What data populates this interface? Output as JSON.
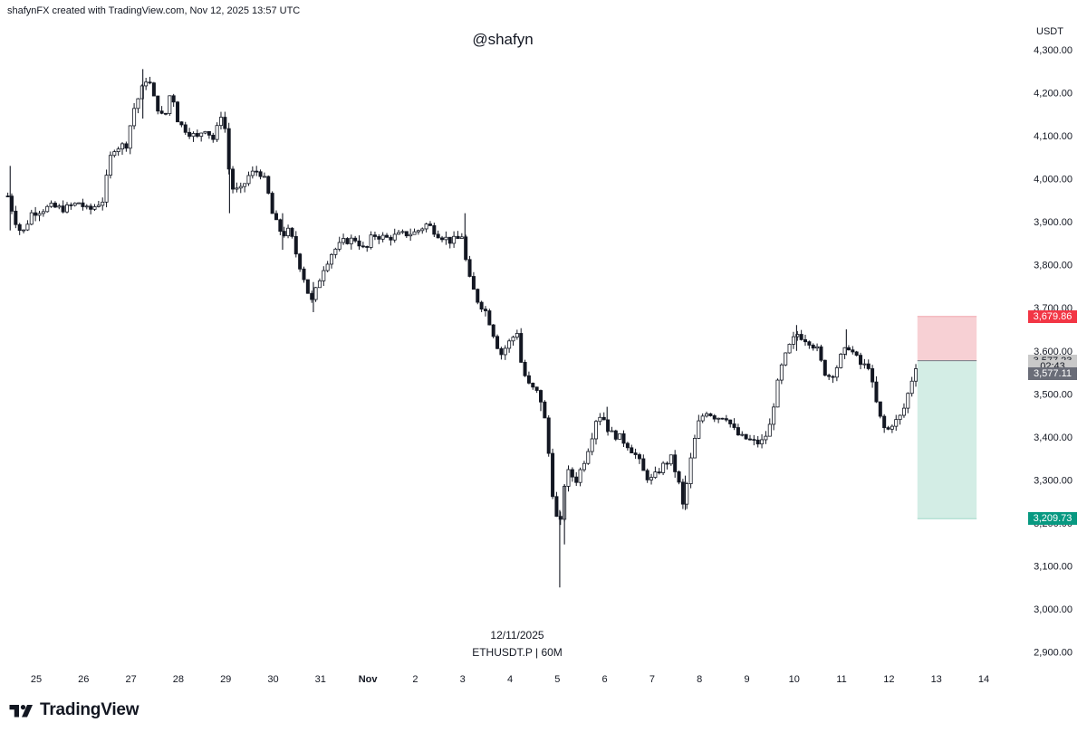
{
  "header": {
    "credit": "shafynFX created with TradingView.com, Nov 12, 2025 13:57 UTC",
    "watermark": "@shafyn"
  },
  "footer": {
    "date": "12/11/2025",
    "symbol": "ETHUSDT.P | 60M"
  },
  "brand": {
    "name": "TradingView"
  },
  "chart_data": {
    "type": "candlestick",
    "symbol": "ETHUSDT.P",
    "interval": "60M",
    "currency": "USDT",
    "y_ticks": [
      2900,
      3000,
      3100,
      3200,
      3300,
      3400,
      3500,
      3600,
      3700,
      3800,
      3900,
      4000,
      4100,
      4200,
      4300
    ],
    "y_tick_labels": [
      "2,900.00",
      "3,000.00",
      "3,100.00",
      "3,200.00",
      "3,300.00",
      "3,400.00",
      "3,500.00",
      "3,600.00",
      "3,700.00",
      "3,800.00",
      "3,900.00",
      "4,000.00",
      "4,100.00",
      "4,200.00",
      "4,300.00"
    ],
    "x_ticks": [
      {
        "label": "25",
        "day": 0,
        "bold": false
      },
      {
        "label": "26",
        "day": 1,
        "bold": false
      },
      {
        "label": "27",
        "day": 2,
        "bold": false
      },
      {
        "label": "28",
        "day": 3,
        "bold": false
      },
      {
        "label": "29",
        "day": 4,
        "bold": false
      },
      {
        "label": "30",
        "day": 5,
        "bold": false
      },
      {
        "label": "31",
        "day": 6,
        "bold": false
      },
      {
        "label": "Nov",
        "day": 7,
        "bold": true
      },
      {
        "label": "2",
        "day": 8,
        "bold": false
      },
      {
        "label": "3",
        "day": 9,
        "bold": false
      },
      {
        "label": "4",
        "day": 10,
        "bold": false
      },
      {
        "label": "5",
        "day": 11,
        "bold": false
      },
      {
        "label": "6",
        "day": 12,
        "bold": false
      },
      {
        "label": "7",
        "day": 13,
        "bold": false
      },
      {
        "label": "8",
        "day": 14,
        "bold": false
      },
      {
        "label": "9",
        "day": 15,
        "bold": false
      },
      {
        "label": "10",
        "day": 16,
        "bold": false
      },
      {
        "label": "11",
        "day": 17,
        "bold": false
      },
      {
        "label": "12",
        "day": 18,
        "bold": false
      },
      {
        "label": "13",
        "day": 19,
        "bold": false
      },
      {
        "label": "14",
        "day": 20,
        "bold": false
      }
    ],
    "ylim": [
      2850,
      4340
    ],
    "xlim_days": [
      -0.62,
      20.6
    ],
    "price_path": [
      [
        -0.6,
        3960
      ],
      [
        -0.45,
        3905
      ],
      [
        -0.3,
        3870
      ],
      [
        -0.1,
        3920
      ],
      [
        0.3,
        3935
      ],
      [
        0.6,
        3930
      ],
      [
        0.9,
        3945
      ],
      [
        1.1,
        3925
      ],
      [
        1.4,
        3950
      ],
      [
        1.6,
        4070
      ],
      [
        1.9,
        4080
      ],
      [
        2.05,
        4160
      ],
      [
        2.2,
        4200
      ],
      [
        2.35,
        4240
      ],
      [
        2.5,
        4180
      ],
      [
        2.7,
        4135
      ],
      [
        2.85,
        4210
      ],
      [
        3.0,
        4130
      ],
      [
        3.2,
        4110
      ],
      [
        3.4,
        4095
      ],
      [
        3.55,
        4120
      ],
      [
        3.75,
        4090
      ],
      [
        3.9,
        4150
      ],
      [
        4.0,
        4110
      ],
      [
        4.1,
        3980
      ],
      [
        4.3,
        3970
      ],
      [
        4.5,
        4010
      ],
      [
        4.7,
        4020
      ],
      [
        4.85,
        3990
      ],
      [
        5.0,
        3910
      ],
      [
        5.2,
        3870
      ],
      [
        5.35,
        3880
      ],
      [
        5.5,
        3820
      ],
      [
        5.65,
        3770
      ],
      [
        5.8,
        3710
      ],
      [
        5.9,
        3740
      ],
      [
        6.05,
        3790
      ],
      [
        6.25,
        3830
      ],
      [
        6.5,
        3855
      ],
      [
        6.75,
        3860
      ],
      [
        6.95,
        3830
      ],
      [
        7.1,
        3870
      ],
      [
        7.4,
        3862
      ],
      [
        7.7,
        3870
      ],
      [
        8.0,
        3875
      ],
      [
        8.25,
        3895
      ],
      [
        8.5,
        3870
      ],
      [
        8.75,
        3855
      ],
      [
        8.9,
        3860
      ],
      [
        9.0,
        3870
      ],
      [
        9.1,
        3780
      ],
      [
        9.3,
        3720
      ],
      [
        9.5,
        3690
      ],
      [
        9.65,
        3640
      ],
      [
        9.8,
        3590
      ],
      [
        9.95,
        3615
      ],
      [
        10.15,
        3645
      ],
      [
        10.25,
        3560
      ],
      [
        10.4,
        3520
      ],
      [
        10.6,
        3500
      ],
      [
        10.7,
        3470
      ],
      [
        10.8,
        3380
      ],
      [
        10.9,
        3270
      ],
      [
        11.0,
        3200
      ],
      [
        11.05,
        3170
      ],
      [
        11.1,
        3260
      ],
      [
        11.2,
        3320
      ],
      [
        11.4,
        3300
      ],
      [
        11.55,
        3340
      ],
      [
        11.7,
        3390
      ],
      [
        11.85,
        3455
      ],
      [
        12.0,
        3440
      ],
      [
        12.1,
        3410
      ],
      [
        12.3,
        3400
      ],
      [
        12.5,
        3380
      ],
      [
        12.7,
        3350
      ],
      [
        12.85,
        3310
      ],
      [
        13.0,
        3300
      ],
      [
        13.2,
        3330
      ],
      [
        13.4,
        3350
      ],
      [
        13.55,
        3300
      ],
      [
        13.65,
        3240
      ],
      [
        13.75,
        3300
      ],
      [
        13.85,
        3370
      ],
      [
        14.0,
        3440
      ],
      [
        14.15,
        3460
      ],
      [
        14.35,
        3445
      ],
      [
        14.55,
        3450
      ],
      [
        14.7,
        3420
      ],
      [
        14.85,
        3400
      ],
      [
        15.0,
        3395
      ],
      [
        15.2,
        3385
      ],
      [
        15.35,
        3390
      ],
      [
        15.5,
        3430
      ],
      [
        15.6,
        3500
      ],
      [
        15.75,
        3570
      ],
      [
        15.9,
        3610
      ],
      [
        16.05,
        3640
      ],
      [
        16.2,
        3630
      ],
      [
        16.35,
        3620
      ],
      [
        16.5,
        3600
      ],
      [
        16.6,
        3560
      ],
      [
        16.7,
        3540
      ],
      [
        16.85,
        3550
      ],
      [
        17.0,
        3590
      ],
      [
        17.15,
        3610
      ],
      [
        17.3,
        3585
      ],
      [
        17.45,
        3560
      ],
      [
        17.55,
        3575
      ],
      [
        17.65,
        3520
      ],
      [
        17.75,
        3470
      ],
      [
        17.85,
        3430
      ],
      [
        17.95,
        3410
      ],
      [
        18.05,
        3430
      ],
      [
        18.2,
        3440
      ],
      [
        18.3,
        3460
      ],
      [
        18.45,
        3520
      ],
      [
        18.55,
        3560
      ],
      [
        18.6,
        3577
      ]
    ],
    "spikes": [
      {
        "day": -0.55,
        "high": 4030,
        "low": 3880
      },
      {
        "day": 2.25,
        "high": 4255,
        "low": 4140
      },
      {
        "day": 4.08,
        "high": 4040,
        "low": 3920
      },
      {
        "day": 5.2,
        "high": 3920,
        "low": 3835
      },
      {
        "day": 5.85,
        "high": 3760,
        "low": 3690
      },
      {
        "day": 9.05,
        "high": 3920,
        "low": 3840
      },
      {
        "day": 10.65,
        "high": 3510,
        "low": 3460
      },
      {
        "day": 11.05,
        "high": 3230,
        "low": 3050
      },
      {
        "day": 11.15,
        "high": 3290,
        "low": 3150
      },
      {
        "day": 12.05,
        "high": 3470,
        "low": 3410
      },
      {
        "day": 13.7,
        "high": 3310,
        "low": 3230
      },
      {
        "day": 16.05,
        "high": 3660,
        "low": 3600
      },
      {
        "day": 17.1,
        "high": 3650,
        "low": 3590
      }
    ],
    "position": {
      "start_day": 18.6,
      "end_day": 19.85,
      "stop_loss": 3679.86,
      "entry": 3577.23,
      "take_profit": 3209.73,
      "stop_color": "#f7d0d4",
      "target_color": "#d3ede5"
    },
    "price_tags": [
      {
        "label": "3,679.86",
        "value": 3679.86,
        "bg": "#f23645",
        "fg": "#ffffff"
      },
      {
        "label": "3,577.23",
        "value": 3577.23,
        "bg": "#c9c9c9",
        "fg": "#131722"
      },
      {
        "label": "02:43",
        "value": 3563.0,
        "bg": "#c9c9c9",
        "fg": "#131722"
      },
      {
        "label": "3,577.11",
        "value": 3547.5,
        "bg": "#6a6d78",
        "fg": "#ffffff"
      },
      {
        "label": "3,209.73",
        "value": 3209.73,
        "bg": "#089981",
        "fg": "#ffffff"
      }
    ],
    "colors": {
      "candle": "#131722",
      "stop_zone": "#f7d0d4",
      "target_zone": "#d3ede5",
      "entry_line": "#787b86"
    }
  }
}
